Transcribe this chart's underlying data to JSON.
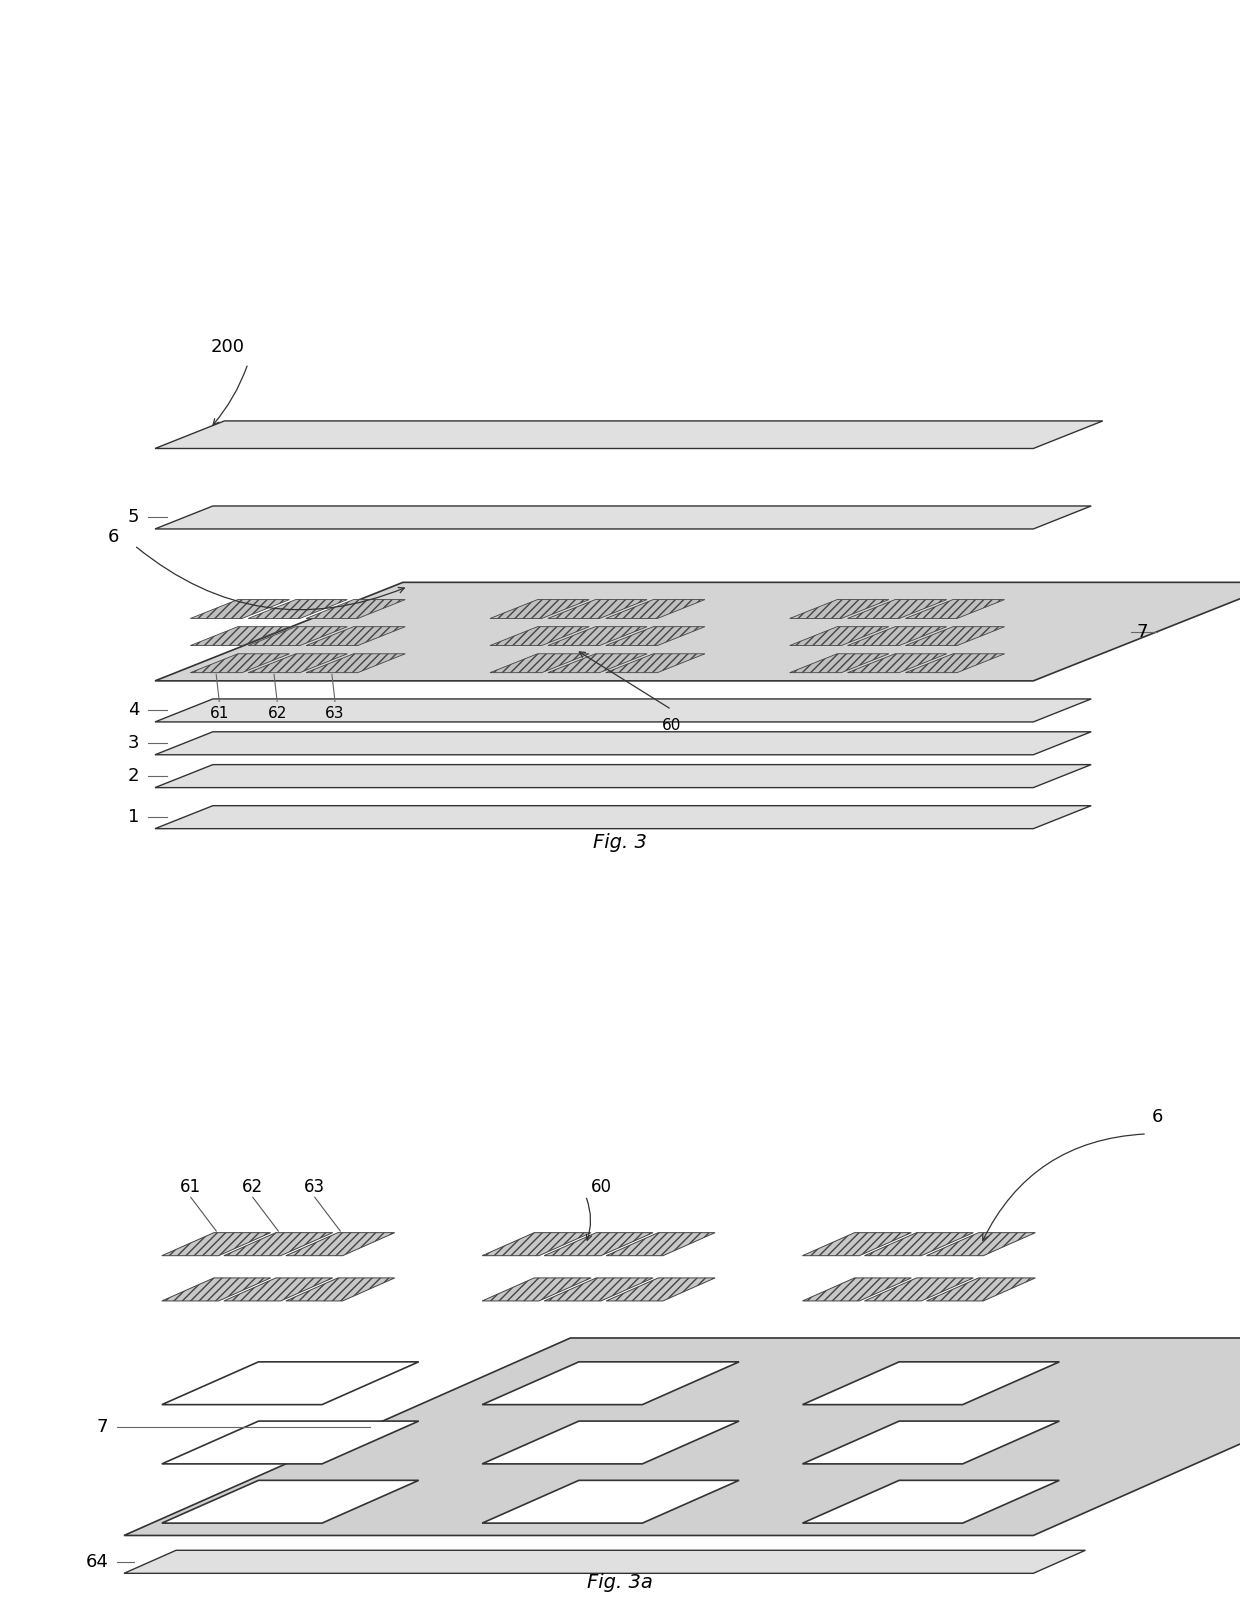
{
  "bg_color": "#ffffff",
  "fig3_title": "Fig. 3",
  "fig3a_title": "Fig. 3a",
  "layer_light": "#e8e8e8",
  "layer_medium": "#d0d0d0",
  "layer_dark": "#b8b8b8",
  "pixel_fill": "#c8c8c8",
  "pixel_edge": "#444444",
  "opening_fill": "#ffffff",
  "layer_edge": "#333333",
  "text_color": "#000000"
}
